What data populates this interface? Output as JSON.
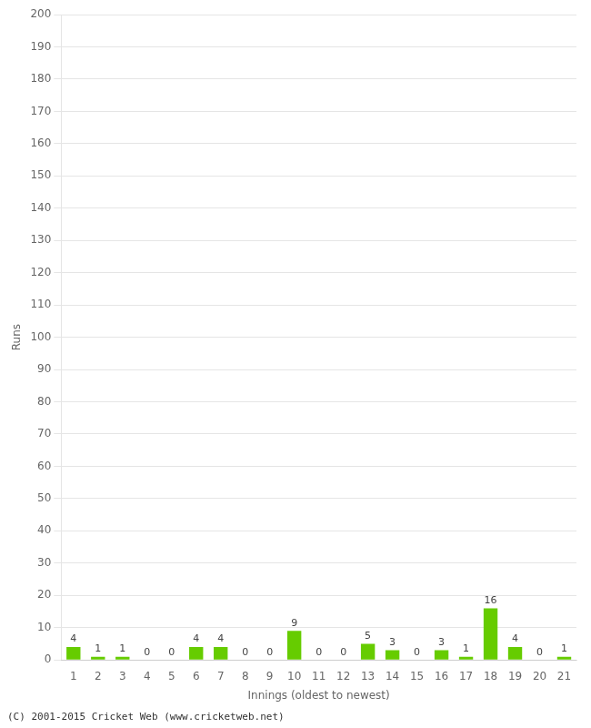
{
  "chart_data": {
    "type": "bar",
    "categories": [
      "1",
      "2",
      "3",
      "4",
      "5",
      "6",
      "7",
      "8",
      "9",
      "10",
      "11",
      "12",
      "13",
      "14",
      "15",
      "16",
      "17",
      "18",
      "19",
      "20",
      "21"
    ],
    "values": [
      4,
      1,
      1,
      0,
      0,
      4,
      4,
      0,
      0,
      9,
      0,
      0,
      5,
      3,
      0,
      3,
      1,
      16,
      4,
      0,
      1
    ],
    "color": "#66cc00",
    "xlabel": "Innings (oldest to newest)",
    "ylabel": "Runs",
    "ylim": [
      0,
      200
    ],
    "yticks": [
      0,
      10,
      20,
      30,
      40,
      50,
      60,
      70,
      80,
      90,
      100,
      110,
      120,
      130,
      140,
      150,
      160,
      170,
      180,
      190,
      200
    ],
    "grid": true,
    "data_labels": true,
    "annotations": [
      "(C) 2001-2015 Cricket Web (www.cricketweb.net)"
    ]
  }
}
